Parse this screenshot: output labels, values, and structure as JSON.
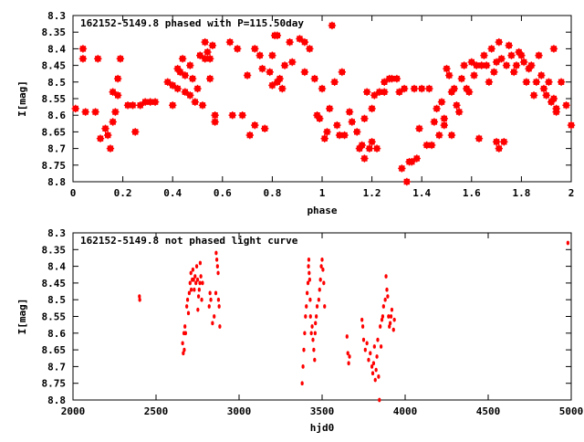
{
  "chart_data": [
    {
      "type": "scatter",
      "title": "162152-5149.8 phased with P=115.50day",
      "xlabel": "phase",
      "ylabel": "I[mag]",
      "xlim": [
        0,
        2
      ],
      "ylim": [
        8.8,
        8.3
      ],
      "y_inverted": true,
      "grid": false,
      "x_ticks": [
        "0",
        "0.2",
        "0.4",
        "0.6",
        "0.8",
        "1",
        "1.2",
        "1.4",
        "1.6",
        "1.8",
        "2"
      ],
      "x_tick_values": [
        0,
        0.2,
        0.4,
        0.6,
        0.8,
        1.0,
        1.2,
        1.4,
        1.6,
        1.8,
        2.0
      ],
      "y_ticks": [
        "8.3",
        "8.35",
        "8.4",
        "8.45",
        "8.5",
        "8.55",
        "8.6",
        "8.65",
        "8.7",
        "8.75",
        "8.8"
      ],
      "y_tick_values": [
        8.3,
        8.35,
        8.4,
        8.45,
        8.5,
        8.55,
        8.6,
        8.65,
        8.7,
        8.75,
        8.8
      ],
      "marker_color": "#ff0000",
      "points": [
        [
          0.01,
          8.58
        ],
        [
          0.04,
          8.4
        ],
        [
          0.04,
          8.43
        ],
        [
          0.05,
          8.59
        ],
        [
          0.09,
          8.59
        ],
        [
          0.1,
          8.43
        ],
        [
          0.11,
          8.67
        ],
        [
          0.13,
          8.64
        ],
        [
          0.14,
          8.66
        ],
        [
          0.15,
          8.7
        ],
        [
          0.16,
          8.62
        ],
        [
          0.16,
          8.53
        ],
        [
          0.17,
          8.59
        ],
        [
          0.18,
          8.54
        ],
        [
          0.18,
          8.49
        ],
        [
          0.19,
          8.43
        ],
        [
          0.22,
          8.57
        ],
        [
          0.24,
          8.57
        ],
        [
          0.25,
          8.65
        ],
        [
          0.27,
          8.57
        ],
        [
          0.29,
          8.56
        ],
        [
          0.31,
          8.56
        ],
        [
          0.33,
          8.56
        ],
        [
          0.38,
          8.5
        ],
        [
          0.4,
          8.51
        ],
        [
          0.4,
          8.57
        ],
        [
          0.42,
          8.46
        ],
        [
          0.42,
          8.52
        ],
        [
          0.43,
          8.47
        ],
        [
          0.44,
          8.43
        ],
        [
          0.45,
          8.48
        ],
        [
          0.45,
          8.53
        ],
        [
          0.47,
          8.45
        ],
        [
          0.47,
          8.54
        ],
        [
          0.48,
          8.49
        ],
        [
          0.49,
          8.56
        ],
        [
          0.5,
          8.52
        ],
        [
          0.51,
          8.42
        ],
        [
          0.52,
          8.57
        ],
        [
          0.53,
          8.38
        ],
        [
          0.53,
          8.43
        ],
        [
          0.54,
          8.41
        ],
        [
          0.55,
          8.43
        ],
        [
          0.55,
          8.49
        ],
        [
          0.56,
          8.39
        ],
        [
          0.57,
          8.6
        ],
        [
          0.57,
          8.62
        ],
        [
          0.63,
          8.38
        ],
        [
          0.64,
          8.6
        ],
        [
          0.66,
          8.4
        ],
        [
          0.68,
          8.6
        ],
        [
          0.7,
          8.48
        ],
        [
          0.71,
          8.66
        ],
        [
          0.73,
          8.4
        ],
        [
          0.73,
          8.63
        ],
        [
          0.75,
          8.42
        ],
        [
          0.76,
          8.46
        ],
        [
          0.77,
          8.64
        ],
        [
          0.79,
          8.47
        ],
        [
          0.8,
          8.51
        ],
        [
          0.8,
          8.42
        ],
        [
          0.81,
          8.36
        ],
        [
          0.82,
          8.5
        ],
        [
          0.82,
          8.36
        ],
        [
          0.83,
          8.49
        ],
        [
          0.84,
          8.52
        ],
        [
          0.85,
          8.45
        ],
        [
          0.87,
          8.38
        ],
        [
          0.88,
          8.44
        ],
        [
          0.91,
          8.37
        ],
        [
          0.93,
          8.38
        ],
        [
          0.93,
          8.47
        ],
        [
          0.95,
          8.4
        ],
        [
          0.97,
          8.49
        ],
        [
          0.98,
          8.6
        ],
        [
          0.99,
          8.61
        ],
        [
          1.0,
          8.52
        ],
        [
          1.01,
          8.67
        ],
        [
          1.02,
          8.65
        ],
        [
          1.03,
          8.58
        ],
        [
          1.04,
          8.33
        ],
        [
          1.05,
          8.5
        ],
        [
          1.06,
          8.63
        ],
        [
          1.07,
          8.66
        ],
        [
          1.08,
          8.47
        ],
        [
          1.09,
          8.66
        ],
        [
          1.11,
          8.59
        ],
        [
          1.12,
          8.62
        ],
        [
          1.14,
          8.65
        ],
        [
          1.15,
          8.7
        ],
        [
          1.16,
          8.69
        ],
        [
          1.17,
          8.73
        ],
        [
          1.17,
          8.61
        ],
        [
          1.18,
          8.53
        ],
        [
          1.19,
          8.7
        ],
        [
          1.2,
          8.58
        ],
        [
          1.2,
          8.68
        ],
        [
          1.21,
          8.54
        ],
        [
          1.22,
          8.7
        ],
        [
          1.23,
          8.53
        ],
        [
          1.25,
          8.5
        ],
        [
          1.25,
          8.53
        ],
        [
          1.27,
          8.49
        ],
        [
          1.28,
          8.49
        ],
        [
          1.3,
          8.49
        ],
        [
          1.31,
          8.53
        ],
        [
          1.32,
          8.76
        ],
        [
          1.33,
          8.52
        ],
        [
          1.34,
          8.8
        ],
        [
          1.35,
          8.74
        ],
        [
          1.36,
          8.74
        ],
        [
          1.37,
          8.52
        ],
        [
          1.38,
          8.73
        ],
        [
          1.39,
          8.64
        ],
        [
          1.4,
          8.52
        ],
        [
          1.42,
          8.69
        ],
        [
          1.43,
          8.52
        ],
        [
          1.44,
          8.69
        ],
        [
          1.45,
          8.62
        ],
        [
          1.46,
          8.58
        ],
        [
          1.47,
          8.66
        ],
        [
          1.48,
          8.56
        ],
        [
          1.49,
          8.63
        ],
        [
          1.49,
          8.61
        ],
        [
          1.5,
          8.46
        ],
        [
          1.51,
          8.48
        ],
        [
          1.52,
          8.53
        ],
        [
          1.52,
          8.66
        ],
        [
          1.53,
          8.52
        ],
        [
          1.54,
          8.57
        ],
        [
          1.55,
          8.59
        ],
        [
          1.56,
          8.49
        ],
        [
          1.57,
          8.45
        ],
        [
          1.58,
          8.52
        ],
        [
          1.59,
          8.53
        ],
        [
          1.6,
          8.44
        ],
        [
          1.61,
          8.48
        ],
        [
          1.62,
          8.45
        ],
        [
          1.63,
          8.67
        ],
        [
          1.64,
          8.45
        ],
        [
          1.65,
          8.42
        ],
        [
          1.66,
          8.45
        ],
        [
          1.67,
          8.5
        ],
        [
          1.68,
          8.4
        ],
        [
          1.69,
          8.47
        ],
        [
          1.7,
          8.68
        ],
        [
          1.7,
          8.44
        ],
        [
          1.71,
          8.38
        ],
        [
          1.71,
          8.7
        ],
        [
          1.72,
          8.43
        ],
        [
          1.73,
          8.68
        ],
        [
          1.74,
          8.45
        ],
        [
          1.75,
          8.39
        ],
        [
          1.76,
          8.42
        ],
        [
          1.77,
          8.47
        ],
        [
          1.78,
          8.45
        ],
        [
          1.79,
          8.41
        ],
        [
          1.8,
          8.42
        ],
        [
          1.81,
          8.44
        ],
        [
          1.82,
          8.5
        ],
        [
          1.83,
          8.46
        ],
        [
          1.84,
          8.45
        ],
        [
          1.85,
          8.54
        ],
        [
          1.86,
          8.5
        ],
        [
          1.87,
          8.42
        ],
        [
          1.88,
          8.48
        ],
        [
          1.89,
          8.52
        ],
        [
          1.9,
          8.54
        ],
        [
          1.91,
          8.5
        ],
        [
          1.92,
          8.56
        ],
        [
          1.93,
          8.4
        ],
        [
          1.93,
          8.55
        ],
        [
          1.94,
          8.58
        ],
        [
          1.94,
          8.59
        ],
        [
          1.96,
          8.5
        ],
        [
          1.98,
          8.57
        ],
        [
          2.0,
          8.63
        ]
      ]
    },
    {
      "type": "scatter",
      "title": "162152-5149.8 not phased light curve",
      "xlabel": "hjd0",
      "ylabel": "I[mag]",
      "xlim": [
        2000,
        5000
      ],
      "ylim": [
        8.8,
        8.3
      ],
      "y_inverted": true,
      "grid": false,
      "x_ticks": [
        "2000",
        "2500",
        "3000",
        "3500",
        "4000",
        "4500",
        "5000"
      ],
      "x_tick_values": [
        2000,
        2500,
        3000,
        3500,
        4000,
        4500,
        5000
      ],
      "y_ticks": [
        "8.3",
        "8.35",
        "8.4",
        "8.45",
        "8.5",
        "8.55",
        "8.6",
        "8.65",
        "8.7",
        "8.75",
        "8.8"
      ],
      "y_tick_values": [
        8.3,
        8.35,
        8.4,
        8.45,
        8.5,
        8.55,
        8.6,
        8.65,
        8.7,
        8.75,
        8.8
      ],
      "marker_color": "#ff0000",
      "points": [
        [
          2400,
          8.49
        ],
        [
          2402,
          8.5
        ],
        [
          2660,
          8.63
        ],
        [
          2664,
          8.66
        ],
        [
          2668,
          8.6
        ],
        [
          2670,
          8.65
        ],
        [
          2674,
          8.58
        ],
        [
          2678,
          8.6
        ],
        [
          2685,
          8.52
        ],
        [
          2690,
          8.5
        ],
        [
          2695,
          8.54
        ],
        [
          2700,
          8.48
        ],
        [
          2705,
          8.45
        ],
        [
          2710,
          8.42
        ],
        [
          2712,
          8.47
        ],
        [
          2718,
          8.44
        ],
        [
          2722,
          8.41
        ],
        [
          2726,
          8.44
        ],
        [
          2730,
          8.47
        ],
        [
          2735,
          8.43
        ],
        [
          2740,
          8.45
        ],
        [
          2745,
          8.4
        ],
        [
          2750,
          8.44
        ],
        [
          2752,
          8.53
        ],
        [
          2756,
          8.49
        ],
        [
          2760,
          8.47
        ],
        [
          2764,
          8.45
        ],
        [
          2766,
          8.39
        ],
        [
          2770,
          8.43
        ],
        [
          2775,
          8.5
        ],
        [
          2780,
          8.45
        ],
        [
          2820,
          8.52
        ],
        [
          2825,
          8.48
        ],
        [
          2830,
          8.5
        ],
        [
          2840,
          8.57
        ],
        [
          2850,
          8.55
        ],
        [
          2860,
          8.48
        ],
        [
          2862,
          8.36
        ],
        [
          2866,
          8.38
        ],
        [
          2870,
          8.4
        ],
        [
          2874,
          8.42
        ],
        [
          2876,
          8.5
        ],
        [
          2880,
          8.52
        ],
        [
          2884,
          8.58
        ],
        [
          3380,
          8.75
        ],
        [
          3385,
          8.7
        ],
        [
          3390,
          8.65
        ],
        [
          3395,
          8.6
        ],
        [
          3400,
          8.55
        ],
        [
          3405,
          8.52
        ],
        [
          3410,
          8.48
        ],
        [
          3415,
          8.45
        ],
        [
          3418,
          8.4
        ],
        [
          3420,
          8.38
        ],
        [
          3422,
          8.42
        ],
        [
          3425,
          8.44
        ],
        [
          3428,
          8.5
        ],
        [
          3430,
          8.55
        ],
        [
          3435,
          8.6
        ],
        [
          3440,
          8.58
        ],
        [
          3445,
          8.62
        ],
        [
          3450,
          8.65
        ],
        [
          3455,
          8.68
        ],
        [
          3458,
          8.6
        ],
        [
          3460,
          8.57
        ],
        [
          3465,
          8.55
        ],
        [
          3470,
          8.52
        ],
        [
          3480,
          8.5
        ],
        [
          3485,
          8.47
        ],
        [
          3490,
          8.44
        ],
        [
          3495,
          8.4
        ],
        [
          3500,
          8.38
        ],
        [
          3505,
          8.41
        ],
        [
          3510,
          8.45
        ],
        [
          3515,
          8.52
        ],
        [
          3650,
          8.61
        ],
        [
          3655,
          8.66
        ],
        [
          3660,
          8.69
        ],
        [
          3665,
          8.67
        ],
        [
          3740,
          8.56
        ],
        [
          3745,
          8.58
        ],
        [
          3750,
          8.62
        ],
        [
          3760,
          8.65
        ],
        [
          3770,
          8.63
        ],
        [
          3780,
          8.68
        ],
        [
          3790,
          8.66
        ],
        [
          3800,
          8.7
        ],
        [
          3805,
          8.72
        ],
        [
          3810,
          8.69
        ],
        [
          3815,
          8.64
        ],
        [
          3820,
          8.74
        ],
        [
          3825,
          8.71
        ],
        [
          3830,
          8.67
        ],
        [
          3835,
          8.62
        ],
        [
          3840,
          8.73
        ],
        [
          3845,
          8.8
        ],
        [
          3850,
          8.58
        ],
        [
          3855,
          8.64
        ],
        [
          3860,
          8.56
        ],
        [
          3865,
          8.55
        ],
        [
          3870,
          8.52
        ],
        [
          3880,
          8.5
        ],
        [
          3885,
          8.43
        ],
        [
          3890,
          8.47
        ],
        [
          3895,
          8.49
        ],
        [
          3900,
          8.55
        ],
        [
          3905,
          8.58
        ],
        [
          3910,
          8.57
        ],
        [
          3915,
          8.55
        ],
        [
          3920,
          8.53
        ],
        [
          3930,
          8.59
        ],
        [
          3935,
          8.56
        ],
        [
          4980,
          8.33
        ]
      ]
    }
  ]
}
